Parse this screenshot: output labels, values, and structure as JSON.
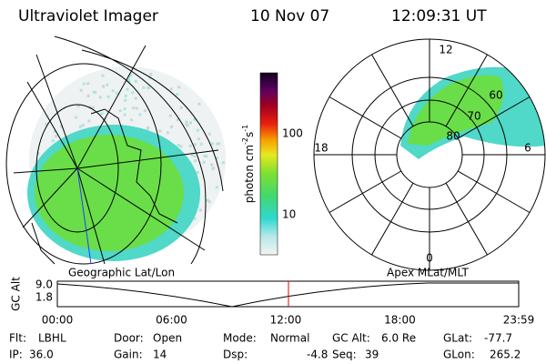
{
  "header": {
    "instrument": "Ultraviolet Imager",
    "date": "10 Nov 07",
    "time": "12:09:31 UT"
  },
  "colorbar": {
    "unit": {
      "base": "photon cm",
      "exp1": "-2",
      "mid": "s",
      "exp2": "-1"
    },
    "labels": [
      "100",
      "10"
    ]
  },
  "panels": {
    "left": "Geographic Lat/Lon",
    "right": "Apex MLat/MLT"
  },
  "polar": {
    "labels": [
      "12",
      "18",
      "6",
      "0",
      "60",
      "70",
      "80"
    ]
  },
  "altitude_plot": {
    "axis_label": "GC Alt",
    "y_labels": [
      "9.0",
      "1.8"
    ],
    "time_labels": [
      "00:00",
      "06:00",
      "12:00",
      "18:00",
      "23:59"
    ]
  },
  "info": [
    [
      {
        "label": "Flt:",
        "value": "LBHL"
      },
      {
        "label": "Door:",
        "value": "Open"
      },
      {
        "label": "Mode:",
        "value": "Normal"
      },
      {
        "label": "GC Alt:",
        "value": "6.0 Re"
      },
      {
        "label": "GLat:",
        "value": "-77.7"
      }
    ],
    [
      {
        "label": "IP:",
        "value": "36.0"
      },
      {
        "label": "Gain:",
        "value": "14"
      },
      {
        "label": "Dsp:",
        "value": "-4.8"
      },
      {
        "label": "Seq:",
        "value": "39"
      },
      {
        "label": "GLon:",
        "value": "265.2"
      }
    ]
  ]
}
